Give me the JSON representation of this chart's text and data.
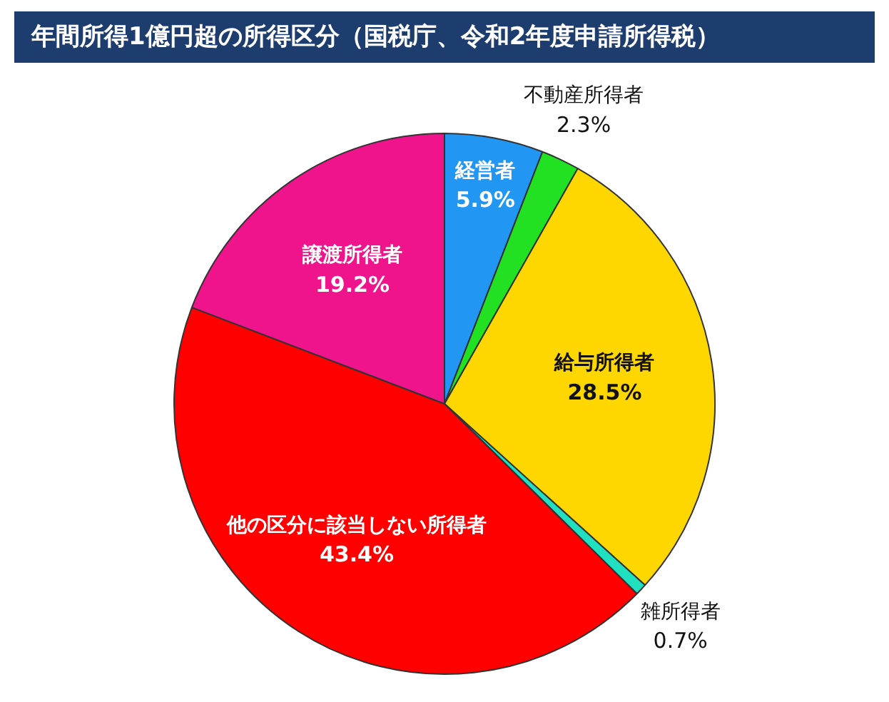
{
  "chart_data": {
    "type": "pie",
    "title": "年間所得1億円超の所得区分（国税庁、令和2年度申請所得税）",
    "categories": [
      "経営者",
      "不動産所得者",
      "給与所得者",
      "雑所得者",
      "他の区分に該当しない所得者",
      "譲渡所得者"
    ],
    "values": [
      5.9,
      2.3,
      28.5,
      0.7,
      43.4,
      19.2
    ],
    "value_labels": [
      "5.9%",
      "2.3%",
      "28.5%",
      "0.7%",
      "43.4%",
      "19.2%"
    ],
    "colors": [
      "#2196f3",
      "#22e022",
      "#ffd700",
      "#20e0c0",
      "#ff0000",
      "#f0148c"
    ]
  }
}
